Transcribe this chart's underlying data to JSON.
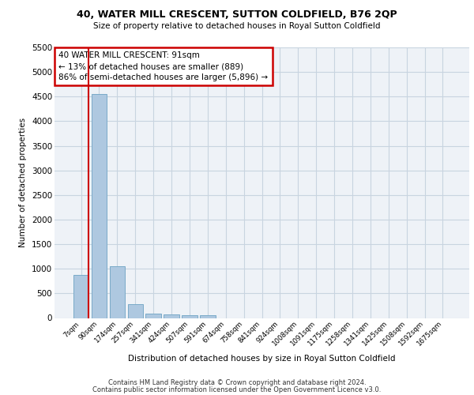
{
  "title_line1": "40, WATER MILL CRESCENT, SUTTON COLDFIELD, B76 2QP",
  "title_line2": "Size of property relative to detached houses in Royal Sutton Coldfield",
  "xlabel": "Distribution of detached houses by size in Royal Sutton Coldfield",
  "ylabel": "Number of detached properties",
  "footer_line1": "Contains HM Land Registry data © Crown copyright and database right 2024.",
  "footer_line2": "Contains public sector information licensed under the Open Government Licence v3.0.",
  "annotation_line1": "40 WATER MILL CRESCENT: 91sqm",
  "annotation_line2": "← 13% of detached houses are smaller (889)",
  "annotation_line3": "86% of semi-detached houses are larger (5,896) →",
  "bar_labels": [
    "7sqm",
    "90sqm",
    "174sqm",
    "257sqm",
    "341sqm",
    "424sqm",
    "507sqm",
    "591sqm",
    "674sqm",
    "758sqm",
    "841sqm",
    "924sqm",
    "1008sqm",
    "1091sqm",
    "1175sqm",
    "1258sqm",
    "1341sqm",
    "1425sqm",
    "1508sqm",
    "1592sqm",
    "1675sqm"
  ],
  "bar_values": [
    880,
    4550,
    1050,
    280,
    90,
    75,
    55,
    55,
    0,
    0,
    0,
    0,
    0,
    0,
    0,
    0,
    0,
    0,
    0,
    0,
    0
  ],
  "bar_color": "#aec8e0",
  "bar_edge_color": "#7aaac8",
  "marker_color": "#cc0000",
  "ylim": [
    0,
    5500
  ],
  "yticks": [
    0,
    500,
    1000,
    1500,
    2000,
    2500,
    3000,
    3500,
    4000,
    4500,
    5000,
    5500
  ],
  "annotation_box_color": "#cc0000",
  "bg_color": "#eef2f7",
  "grid_color": "#c8d4e0"
}
